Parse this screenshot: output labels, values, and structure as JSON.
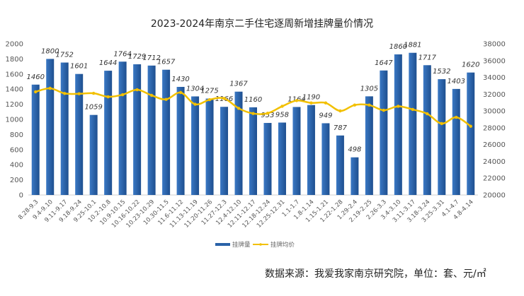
{
  "chart_data": {
    "type": "bar+line",
    "title": "2023-2024年南京二手住宅逐周新增挂牌量价情况",
    "categories": [
      "8.28-9.3",
      "9.4-9.10",
      "9.11-9.17",
      "9.18-9.24",
      "9.25-10.1",
      "10.2-10.8",
      "10.9-10.15",
      "10.16-10.22",
      "10.23-10.29",
      "10.30-11.5",
      "11.6-11.12",
      "11.13-11.19",
      "11.20-11.26",
      "11.27-12.3",
      "12.4-12.10",
      "12.11-12.17",
      "12.18-12.24",
      "12.25-12.31",
      "1.1-1.7",
      "1.8-1.14",
      "1.15-1.21",
      "1.22-1.28",
      "1.29-2.4",
      "2.19-2.25",
      "2.26-3.3",
      "3.4-3.10",
      "3.11-3.17",
      "3.18-3.24",
      "3.25-3.31",
      "4.1-4.7",
      "4.8-4.14"
    ],
    "series": [
      {
        "name": "挂牌量",
        "type": "bar",
        "axis": "left",
        "color": "#2a62a8",
        "values": [
          1460,
          1800,
          1752,
          1601,
          1059,
          1644,
          1764,
          1729,
          1712,
          1657,
          1430,
          1304,
          1275,
          1166,
          1367,
          1160,
          953,
          958,
          1164,
          1190,
          949,
          787,
          498,
          1305,
          1647,
          1860,
          1881,
          1717,
          1532,
          1403,
          1620
        ]
      },
      {
        "name": "挂牌均价",
        "type": "line",
        "axis": "right",
        "color": "#f2c000",
        "values": [
          32280,
          32700,
          32090,
          32050,
          32110,
          31690,
          31940,
          32530,
          31860,
          31380,
          32200,
          30800,
          31350,
          31500,
          30320,
          29700,
          29730,
          30560,
          31240,
          30960,
          30960,
          30010,
          30710,
          30710,
          30090,
          30560,
          30180,
          29670,
          28500,
          29250,
          28180
        ]
      }
    ],
    "left_axis": {
      "ylim": [
        0,
        2000
      ],
      "ticks": [
        "0",
        "200",
        "400",
        "600",
        "800",
        "1000",
        "1200",
        "1400",
        "1600",
        "1800",
        "2000"
      ]
    },
    "right_axis": {
      "ylim": [
        20000,
        38000
      ],
      "ticks": [
        "20000",
        "22000",
        "24000",
        "26000",
        "28000",
        "30000",
        "32000",
        "34000",
        "36000",
        "38000"
      ]
    },
    "legend_position": "bottom-center",
    "grid": false
  },
  "source_note": "数据来源：我爱我家南京研究院，单位：套、元/㎡"
}
